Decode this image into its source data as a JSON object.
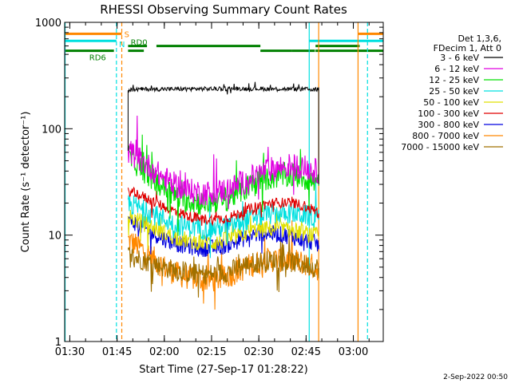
{
  "chart_data": {
    "type": "line",
    "title": "RHESSI Observing Summary Count Rates",
    "xlabel": "Start Time (27-Sep-17 01:28:22)",
    "ylabel": "Count Rate (s⁻¹ detector⁻¹)",
    "yscale": "log",
    "ylim": [
      1,
      1000
    ],
    "xlim_minutes": [
      88.37,
      189.5
    ],
    "x_ticks": [
      {
        "label": "01:30",
        "minute": 90
      },
      {
        "label": "01:45",
        "minute": 105
      },
      {
        "label": "02:00",
        "minute": 120
      },
      {
        "label": "02:15",
        "minute": 135
      },
      {
        "label": "02:30",
        "minute": 150
      },
      {
        "label": "02:45",
        "minute": 165
      },
      {
        "label": "03:00",
        "minute": 180
      }
    ],
    "y_ticks": [
      {
        "label": "1",
        "value": 1
      },
      {
        "label": "10",
        "value": 10
      },
      {
        "label": "100",
        "value": 100
      },
      {
        "label": "1000",
        "value": 1000
      }
    ],
    "grid": false,
    "legend_position": "right",
    "legend_header": [
      "Det 1,3,6,",
      "FDecim 1, Att 0"
    ],
    "data_start_minute": 108.5,
    "data_end_minute": 169.0,
    "curve_x_minutes": [
      108.5,
      112,
      116,
      120,
      124,
      128,
      132,
      136,
      140,
      144,
      148,
      152,
      156,
      160,
      164,
      168,
      169
    ],
    "series": [
      {
        "name": "3 - 6 keV",
        "color": "#000000",
        "noise": 0.02,
        "values": [
          230,
          235,
          236,
          236,
          236,
          237,
          237,
          237,
          238,
          238,
          238,
          237,
          237,
          236,
          235,
          234,
          234
        ]
      },
      {
        "name": "6 - 12 keV",
        "color": "#e000e0",
        "noise": 0.12,
        "values": [
          62,
          52,
          42,
          34,
          29,
          26,
          25,
          25,
          27,
          30,
          35,
          40,
          43,
          45,
          44,
          40,
          38
        ]
      },
      {
        "name": "12 - 25 keV",
        "color": "#00e000",
        "noise": 0.12,
        "values": [
          55,
          45,
          34,
          28,
          23,
          21,
          20,
          21,
          22,
          26,
          30,
          34,
          36,
          37,
          35,
          31,
          29
        ]
      },
      {
        "name": "25 - 50 keV",
        "color": "#00e0e0",
        "noise": 0.1,
        "values": [
          20,
          18,
          16,
          14,
          12.5,
          12,
          11.5,
          11.5,
          12,
          13,
          14.5,
          15.5,
          16,
          16,
          15.5,
          14.5,
          14
        ]
      },
      {
        "name": "50 - 100 keV",
        "color": "#e0e000",
        "noise": 0.08,
        "values": [
          15,
          13.5,
          12,
          10.5,
          9.5,
          8.8,
          8.5,
          8.5,
          9,
          10,
          11,
          11.5,
          11.5,
          11.2,
          10.5,
          10,
          9.8
        ]
      },
      {
        "name": "100 - 300 keV",
        "color": "#e00000",
        "noise": 0.05,
        "values": [
          26,
          24,
          21,
          18.5,
          16.5,
          15,
          14.2,
          14,
          14.5,
          16,
          18,
          19.5,
          20.2,
          20,
          19,
          17,
          16
        ]
      },
      {
        "name": "300 - 800 keV",
        "color": "#0000e0",
        "noise": 0.08,
        "values": [
          14,
          12.5,
          10.5,
          9.2,
          8.3,
          7.8,
          7.5,
          7.6,
          8,
          9,
          10,
          10.5,
          10.2,
          9.8,
          9,
          8.5,
          8
        ]
      },
      {
        "name": "800 - 7000 keV",
        "color": "#ff8800",
        "noise": 0.12,
        "values": [
          9,
          7.8,
          6.2,
          5,
          4.3,
          4,
          3.8,
          3.8,
          4.1,
          4.7,
          5.3,
          5.8,
          5.9,
          5.8,
          5.5,
          5,
          4.8
        ]
      },
      {
        "name": "7000 - 15000 keV",
        "color": "#a07000",
        "noise": 0.1,
        "values": [
          6.5,
          6,
          5.5,
          5,
          4.6,
          4.4,
          4.3,
          4.3,
          4.5,
          5,
          5.5,
          5.7,
          5.8,
          5.6,
          5.3,
          5,
          4.9
        ]
      }
    ],
    "state_bars": {
      "saa": {
        "label": "S",
        "color": "#ff8800",
        "value": 780,
        "segments": [
          [
            88.37,
            106.5
          ],
          [
            181.5,
            189.5
          ]
        ]
      },
      "night": {
        "label": "N",
        "color": "#00e0e0",
        "value": 670,
        "segments": [
          [
            88.37,
            104.8
          ],
          [
            166.0,
            189.5
          ]
        ]
      },
      "decim_upper": {
        "label": "RD0",
        "color": "#008000",
        "value": 600,
        "segments": [
          [
            108.5,
            114.5
          ],
          [
            117.5,
            150.5
          ],
          [
            168.0,
            182.0
          ]
        ]
      },
      "decim_lower": {
        "label": "RD6",
        "color": "#008000",
        "value": 540,
        "segments": [
          [
            88.37,
            104.0
          ],
          [
            108.5,
            113.5
          ],
          [
            150.5,
            160.5
          ],
          [
            160.5,
            167.8
          ],
          [
            168.0,
            189.5
          ]
        ]
      }
    },
    "vertical_lines": [
      {
        "minute": 88.5,
        "color": "#00e0e0",
        "dashed": false
      },
      {
        "minute": 104.8,
        "color": "#00e0e0",
        "dashed": true
      },
      {
        "minute": 106.5,
        "color": "#ff8800",
        "dashed": true
      },
      {
        "minute": 166.0,
        "color": "#00e0e0",
        "dashed": false
      },
      {
        "minute": 169.0,
        "color": "#ff8800",
        "dashed": false
      },
      {
        "minute": 181.5,
        "color": "#ff8800",
        "dashed": false
      },
      {
        "minute": 184.5,
        "color": "#00e0e0",
        "dashed": true
      }
    ],
    "timestamp": "2-Sep-2022 00:50"
  }
}
